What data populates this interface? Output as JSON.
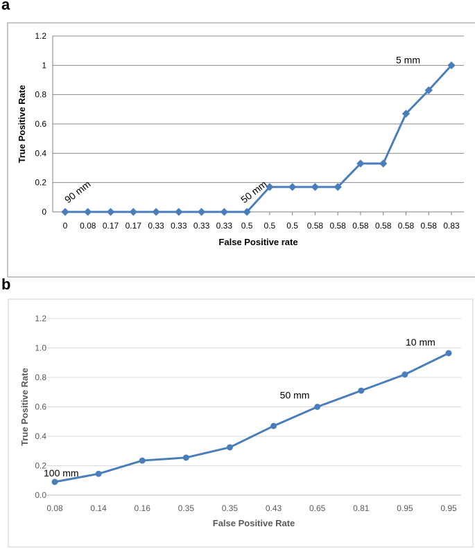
{
  "panels": {
    "a": "a",
    "b": "b"
  },
  "chart_data": [
    {
      "type": "line",
      "panel": "a",
      "categories": [
        "0",
        "0.08",
        "0.17",
        "0.17",
        "0.33",
        "0.33",
        "0.33",
        "0.33",
        "0.5",
        "0.5",
        "0.5",
        "0.58",
        "0.58",
        "0.58",
        "0.58",
        "0.58",
        "0.58",
        "0.83"
      ],
      "values": [
        0,
        0,
        0,
        0,
        0,
        0,
        0,
        0,
        0,
        0.17,
        0.17,
        0.17,
        0.17,
        0.33,
        0.33,
        0.67,
        0.83,
        1
      ],
      "yticks": [
        "0",
        "0.2",
        "0.4",
        "0.6",
        "0.8",
        "1",
        "1.2"
      ],
      "ylim": [
        0,
        1.2
      ],
      "xlabel": "False Positive rate",
      "ylabel": "True Positive Rate",
      "marker": "diamond",
      "grid": true,
      "annotations": [
        {
          "text": "90 mm",
          "index": 0,
          "rotated": true
        },
        {
          "text": "50 mm",
          "index": 8,
          "rotated": true
        },
        {
          "text": "5 mm",
          "index": 17,
          "rotated": false
        }
      ]
    },
    {
      "type": "line",
      "panel": "b",
      "categories": [
        "0.08",
        "0.14",
        "0.16",
        "0.35",
        "0.35",
        "0.43",
        "0.65",
        "0.81",
        "0.95",
        "0.95"
      ],
      "values": [
        0.09,
        0.145,
        0.235,
        0.255,
        0.325,
        0.47,
        0.6,
        0.71,
        0.82,
        0.965
      ],
      "yticks": [
        "0.0",
        "0.2",
        "0.4",
        "0.6",
        "0.8",
        "1.0",
        "1.2"
      ],
      "ylim": [
        0,
        1.2
      ],
      "xlabel": "False Positive Rate",
      "ylabel": "True Positive Rate",
      "marker": "circle",
      "grid": true,
      "annotations": [
        {
          "text": "100 mm",
          "index": 0,
          "rotated": false
        },
        {
          "text": "50 mm",
          "index": 6,
          "rotated": false
        },
        {
          "text": "10 mm",
          "index": 9,
          "rotated": false
        }
      ]
    }
  ]
}
